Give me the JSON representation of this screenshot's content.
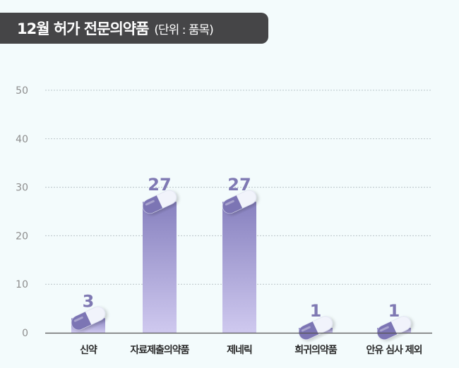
{
  "header": {
    "title": "12월 허가 전문의약품",
    "subtitle": "(단위 : 품목)"
  },
  "colors": {
    "bar_top": "#8781bf",
    "bar_bottom": "#cfc9ef",
    "label": "#7f79b3"
  },
  "chart_data": {
    "type": "bar",
    "categories": [
      "신약",
      "자료제출의약품",
      "제네릭",
      "희귀의약품",
      "안유 심사 제외"
    ],
    "values": [
      3,
      27,
      27,
      1,
      1
    ],
    "data_labels": [
      "3",
      "27",
      "27",
      "1",
      "1"
    ],
    "y_ticks": [
      "0",
      "10",
      "20",
      "30",
      "40",
      "50"
    ],
    "ylim": [
      0,
      50
    ],
    "grid": true,
    "legend": "none"
  }
}
